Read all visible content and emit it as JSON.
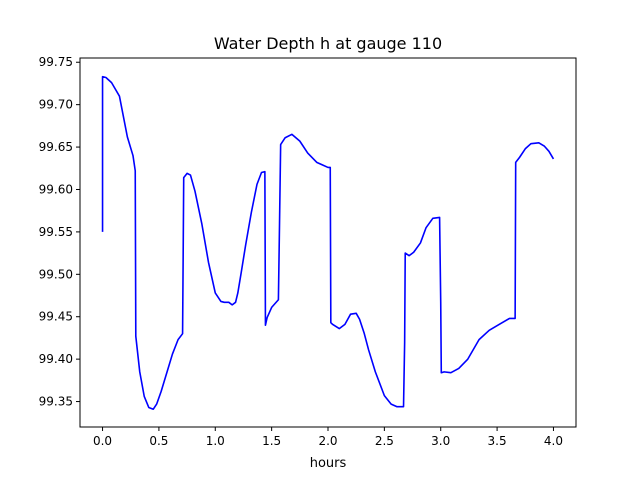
{
  "chart_data": {
    "type": "line",
    "title": "Water Depth h at gauge 110",
    "xlabel": "hours",
    "ylabel": "",
    "xlim": [
      -0.2,
      4.2
    ],
    "ylim": [
      99.32,
      99.755
    ],
    "xticks": [
      0.0,
      0.5,
      1.0,
      1.5,
      2.0,
      2.5,
      3.0,
      3.5,
      4.0
    ],
    "xtick_labels": [
      "0.0",
      "0.5",
      "1.0",
      "1.5",
      "2.0",
      "2.5",
      "3.0",
      "3.5",
      "4.0"
    ],
    "yticks": [
      99.35,
      99.4,
      99.45,
      99.5,
      99.55,
      99.6,
      99.65,
      99.7,
      99.75
    ],
    "ytick_labels": [
      "99.35",
      "99.40",
      "99.45",
      "99.50",
      "99.55",
      "99.60",
      "99.65",
      "99.70",
      "99.75"
    ],
    "grid": false,
    "legend": false,
    "series": [
      {
        "color": "#0000ff",
        "x": [
          0.0,
          0.0,
          0.03,
          0.08,
          0.15,
          0.22,
          0.27,
          0.29,
          0.295,
          0.33,
          0.37,
          0.41,
          0.45,
          0.48,
          0.52,
          0.57,
          0.62,
          0.67,
          0.71,
          0.715,
          0.72,
          0.75,
          0.78,
          0.82,
          0.88,
          0.94,
          1.0,
          1.05,
          1.08,
          1.12,
          1.15,
          1.18,
          1.2,
          1.23,
          1.27,
          1.32,
          1.37,
          1.41,
          1.44,
          1.445,
          1.46,
          1.5,
          1.56,
          1.57,
          1.58,
          1.62,
          1.68,
          1.75,
          1.82,
          1.9,
          1.95,
          2.0,
          2.02,
          2.025,
          2.04,
          2.1,
          2.15,
          2.2,
          2.25,
          2.28,
          2.32,
          2.36,
          2.42,
          2.5,
          2.56,
          2.61,
          2.67,
          2.68,
          2.685,
          2.72,
          2.76,
          2.82,
          2.87,
          2.93,
          2.99,
          3.0,
          3.005,
          3.03,
          3.09,
          3.16,
          3.24,
          3.34,
          3.43,
          3.52,
          3.61,
          3.66,
          3.665,
          3.7,
          3.75,
          3.8,
          3.87,
          3.92,
          3.96,
          4.0
        ],
        "y": [
          99.55,
          99.733,
          99.732,
          99.726,
          99.71,
          99.662,
          99.64,
          99.622,
          99.427,
          99.385,
          99.356,
          99.343,
          99.341,
          99.347,
          99.362,
          99.384,
          99.406,
          99.423,
          99.43,
          99.52,
          99.614,
          99.619,
          99.617,
          99.598,
          99.56,
          99.514,
          99.478,
          99.468,
          99.467,
          99.467,
          99.464,
          99.467,
          99.478,
          99.502,
          99.535,
          99.573,
          99.606,
          99.62,
          99.621,
          99.44,
          99.449,
          99.461,
          99.47,
          99.56,
          99.653,
          99.661,
          99.665,
          99.657,
          99.643,
          99.632,
          99.629,
          99.626,
          99.626,
          99.443,
          99.441,
          99.436,
          99.441,
          99.453,
          99.454,
          99.447,
          99.431,
          99.411,
          99.385,
          99.357,
          99.347,
          99.344,
          99.344,
          99.42,
          99.525,
          99.522,
          99.526,
          99.537,
          99.555,
          99.566,
          99.567,
          99.466,
          99.384,
          99.385,
          99.384,
          99.389,
          99.4,
          99.423,
          99.434,
          99.441,
          99.448,
          99.448,
          99.632,
          99.638,
          99.648,
          99.654,
          99.655,
          99.651,
          99.645,
          99.636
        ]
      }
    ]
  }
}
